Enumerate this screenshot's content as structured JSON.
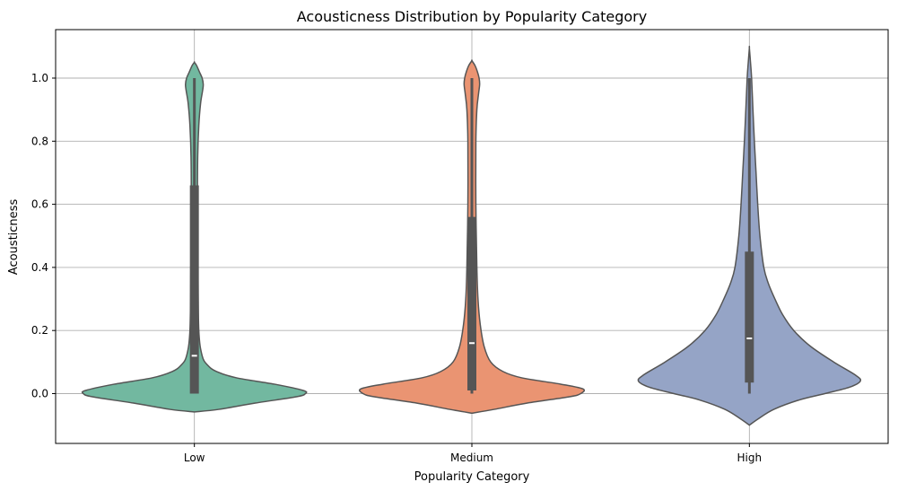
{
  "chart_data": {
    "type": "violin",
    "title": "Acousticness Distribution by Popularity Category",
    "xlabel": "Popularity Category",
    "ylabel": "Acousticness",
    "categories": [
      "Low",
      "Medium",
      "High"
    ],
    "ylim": [
      -0.15,
      1.15
    ],
    "yticks": [
      0.0,
      0.2,
      0.4,
      0.6,
      0.8,
      1.0
    ],
    "ytick_labels": [
      "0.0",
      "0.2",
      "0.4",
      "0.6",
      "0.8",
      "1.0"
    ],
    "grid": true,
    "colors": {
      "Low": "#72b8a0",
      "Medium": "#ea9472",
      "High": "#95a4c6",
      "outline": "#555555",
      "box": "#555555",
      "grid": "#b0b0b0"
    },
    "series": [
      {
        "category": "Low",
        "box": {
          "min": 0.0,
          "q1": 0.0,
          "median": 0.12,
          "q3": 0.66,
          "max": 1.0
        },
        "density_profile": [
          [
            -0.058,
            0.0
          ],
          [
            -0.05,
            0.22
          ],
          [
            -0.03,
            0.55
          ],
          [
            -0.01,
            0.92
          ],
          [
            0.0,
            1.0
          ],
          [
            0.01,
            0.98
          ],
          [
            0.03,
            0.72
          ],
          [
            0.05,
            0.38
          ],
          [
            0.07,
            0.2
          ],
          [
            0.09,
            0.12
          ],
          [
            0.12,
            0.07
          ],
          [
            0.2,
            0.04
          ],
          [
            0.4,
            0.032
          ],
          [
            0.6,
            0.028
          ],
          [
            0.75,
            0.03
          ],
          [
            0.85,
            0.04
          ],
          [
            0.92,
            0.056
          ],
          [
            0.96,
            0.074
          ],
          [
            0.98,
            0.08
          ],
          [
            1.0,
            0.07
          ],
          [
            1.02,
            0.045
          ],
          [
            1.04,
            0.02
          ],
          [
            1.05,
            0.0
          ]
        ]
      },
      {
        "category": "Medium",
        "box": {
          "min": 0.0,
          "q1": 0.01,
          "median": 0.16,
          "q3": 0.56,
          "max": 1.0
        },
        "density_profile": [
          [
            -0.062,
            0.0
          ],
          [
            -0.05,
            0.2
          ],
          [
            -0.03,
            0.5
          ],
          [
            -0.01,
            0.88
          ],
          [
            0.0,
            0.98
          ],
          [
            0.015,
            1.0
          ],
          [
            0.03,
            0.8
          ],
          [
            0.05,
            0.45
          ],
          [
            0.07,
            0.28
          ],
          [
            0.1,
            0.17
          ],
          [
            0.15,
            0.11
          ],
          [
            0.22,
            0.075
          ],
          [
            0.3,
            0.055
          ],
          [
            0.4,
            0.045
          ],
          [
            0.6,
            0.036
          ],
          [
            0.8,
            0.036
          ],
          [
            0.9,
            0.045
          ],
          [
            0.95,
            0.06
          ],
          [
            0.98,
            0.07
          ],
          [
            1.0,
            0.065
          ],
          [
            1.02,
            0.05
          ],
          [
            1.04,
            0.028
          ],
          [
            1.055,
            0.0
          ]
        ]
      },
      {
        "category": "High",
        "box": {
          "min": 0.0,
          "q1": 0.035,
          "median": 0.175,
          "q3": 0.45,
          "max": 1.0
        },
        "density_profile": [
          [
            -0.1,
            0.0
          ],
          [
            -0.08,
            0.08
          ],
          [
            -0.05,
            0.22
          ],
          [
            -0.02,
            0.45
          ],
          [
            0.0,
            0.68
          ],
          [
            0.02,
            0.9
          ],
          [
            0.04,
            1.0
          ],
          [
            0.06,
            0.95
          ],
          [
            0.1,
            0.76
          ],
          [
            0.15,
            0.55
          ],
          [
            0.2,
            0.4
          ],
          [
            0.25,
            0.3
          ],
          [
            0.3,
            0.23
          ],
          [
            0.35,
            0.17
          ],
          [
            0.4,
            0.13
          ],
          [
            0.5,
            0.095
          ],
          [
            0.6,
            0.075
          ],
          [
            0.7,
            0.06
          ],
          [
            0.8,
            0.045
          ],
          [
            0.9,
            0.032
          ],
          [
            1.0,
            0.02
          ],
          [
            1.05,
            0.01
          ],
          [
            1.095,
            0.0
          ]
        ]
      }
    ]
  }
}
